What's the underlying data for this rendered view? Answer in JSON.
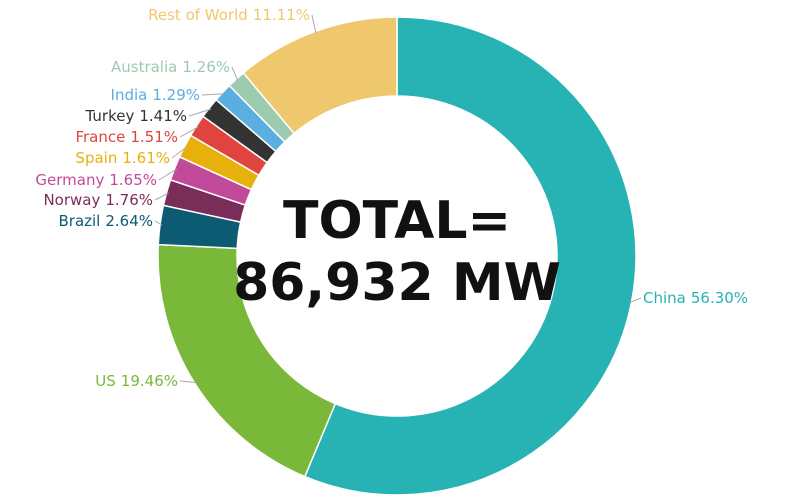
{
  "chart_data": {
    "type": "donut",
    "categories": [
      "China",
      "US",
      "Brazil",
      "Norway",
      "Germany",
      "Spain",
      "France",
      "Turkey",
      "India",
      "Australia",
      "Rest of World"
    ],
    "values": [
      56.3,
      19.46,
      2.64,
      1.76,
      1.65,
      1.61,
      1.51,
      1.41,
      1.29,
      1.26,
      11.11
    ],
    "value_labels": [
      "56.30%",
      "19.46%",
      "2.64%",
      "1.76%",
      "1.65%",
      "1.61%",
      "1.51%",
      "1.41%",
      "1.29%",
      "1.26%",
      "11.11%"
    ],
    "colors": [
      "#27b3b3",
      "#7ab83a",
      "#0d5a73",
      "#7b2d5a",
      "#c24a9a",
      "#e8b00c",
      "#e0443f",
      "#333333",
      "#5aaee0",
      "#9dcbb0",
      "#efc86e"
    ],
    "annotations": [
      "TOTAL=",
      "86,932 MW"
    ]
  }
}
